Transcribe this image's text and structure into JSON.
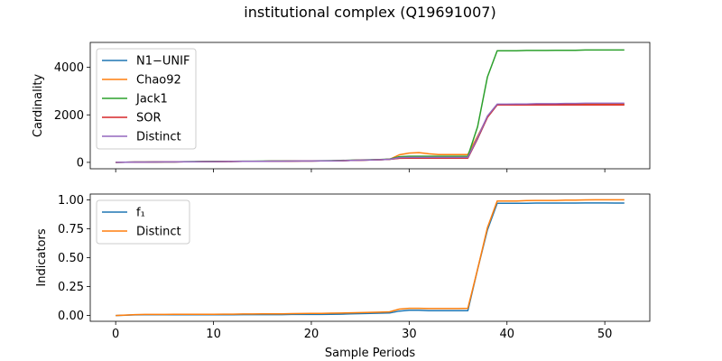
{
  "figure": {
    "title": "institutional complex (Q19691007)"
  },
  "chart_data": [
    {
      "type": "line",
      "ylabel": "Cardinality",
      "xlabel": "",
      "xlim": [
        -2.6,
        54.6
      ],
      "ylim": [
        -270,
        5050
      ],
      "xticks": [
        0,
        10,
        20,
        30,
        40,
        50
      ],
      "xticklabels": [
        "",
        "",
        "",
        "",
        "",
        ""
      ],
      "yticks": [
        0,
        2000,
        4000
      ],
      "yticklabels": [
        "0",
        "2000",
        "4000"
      ],
      "legend_position": "upper left",
      "x": [
        0,
        1,
        2,
        3,
        4,
        5,
        6,
        7,
        8,
        9,
        10,
        11,
        12,
        13,
        14,
        15,
        16,
        17,
        18,
        19,
        20,
        21,
        22,
        23,
        24,
        25,
        26,
        27,
        28,
        29,
        30,
        31,
        32,
        33,
        34,
        35,
        36,
        37,
        38,
        39,
        40,
        41,
        42,
        43,
        44,
        45,
        46,
        47,
        48,
        49,
        50,
        51,
        52
      ],
      "series": [
        {
          "name": "N1−UNIF",
          "color": "#1f77b4",
          "values": [
            0,
            5,
            10,
            12,
            15,
            18,
            20,
            25,
            28,
            30,
            32,
            35,
            38,
            40,
            42,
            45,
            48,
            50,
            52,
            55,
            58,
            60,
            65,
            70,
            80,
            90,
            100,
            110,
            130,
            180,
            190,
            190,
            190,
            190,
            190,
            190,
            190,
            1000,
            1900,
            2420,
            2420,
            2420,
            2420,
            2420,
            2420,
            2430,
            2430,
            2430,
            2440,
            2440,
            2440,
            2440,
            2440
          ]
        },
        {
          "name": "Chao92",
          "color": "#ff7f0e",
          "values": [
            0,
            5,
            10,
            12,
            15,
            18,
            20,
            25,
            28,
            30,
            32,
            35,
            38,
            40,
            42,
            45,
            48,
            50,
            52,
            55,
            58,
            60,
            65,
            70,
            80,
            90,
            100,
            110,
            130,
            320,
            390,
            410,
            360,
            330,
            330,
            330,
            330,
            1100,
            1900,
            2430,
            2430,
            2430,
            2440,
            2440,
            2440,
            2450,
            2450,
            2460,
            2460,
            2460,
            2460,
            2460,
            2460
          ]
        },
        {
          "name": "Jack1",
          "color": "#2ca02c",
          "values": [
            0,
            5,
            10,
            12,
            15,
            18,
            20,
            30,
            35,
            38,
            40,
            42,
            45,
            48,
            50,
            52,
            55,
            58,
            60,
            62,
            65,
            68,
            72,
            78,
            90,
            100,
            110,
            120,
            140,
            240,
            260,
            260,
            260,
            260,
            260,
            260,
            260,
            1500,
            3600,
            4700,
            4700,
            4700,
            4710,
            4710,
            4710,
            4720,
            4720,
            4720,
            4730,
            4730,
            4730,
            4730,
            4730
          ]
        },
        {
          "name": "SOR",
          "color": "#d62728",
          "values": [
            0,
            5,
            10,
            12,
            15,
            18,
            20,
            25,
            28,
            30,
            32,
            35,
            38,
            40,
            42,
            45,
            48,
            50,
            52,
            55,
            58,
            60,
            65,
            70,
            80,
            90,
            100,
            110,
            130,
            170,
            180,
            180,
            180,
            180,
            180,
            180,
            180,
            1000,
            1900,
            2420,
            2420,
            2420,
            2420,
            2420,
            2420,
            2420,
            2420,
            2420,
            2420,
            2420,
            2420,
            2420,
            2420
          ]
        },
        {
          "name": "Distinct",
          "color": "#9467bd",
          "values": [
            0,
            5,
            10,
            12,
            15,
            18,
            20,
            25,
            28,
            30,
            32,
            35,
            38,
            40,
            42,
            45,
            48,
            50,
            52,
            55,
            58,
            60,
            65,
            70,
            80,
            90,
            100,
            110,
            130,
            200,
            210,
            210,
            210,
            210,
            210,
            210,
            210,
            1050,
            1950,
            2450,
            2450,
            2460,
            2460,
            2470,
            2470,
            2470,
            2480,
            2480,
            2490,
            2490,
            2490,
            2490,
            2490
          ]
        }
      ]
    },
    {
      "type": "line",
      "ylabel": "Indicators",
      "xlabel": "Sample Periods",
      "xlim": [
        -2.6,
        54.6
      ],
      "ylim": [
        -0.05,
        1.05
      ],
      "xticks": [
        0,
        10,
        20,
        30,
        40,
        50
      ],
      "xticklabels": [
        "0",
        "10",
        "20",
        "30",
        "40",
        "50"
      ],
      "yticks": [
        0.0,
        0.25,
        0.5,
        0.75,
        1.0
      ],
      "yticklabels": [
        "0.00",
        "0.25",
        "0.50",
        "0.75",
        "1.00"
      ],
      "legend_position": "upper left",
      "x": [
        0,
        1,
        2,
        3,
        4,
        5,
        6,
        7,
        8,
        9,
        10,
        11,
        12,
        13,
        14,
        15,
        16,
        17,
        18,
        19,
        20,
        21,
        22,
        23,
        24,
        25,
        26,
        27,
        28,
        29,
        30,
        31,
        32,
        33,
        34,
        35,
        36,
        37,
        38,
        39,
        40,
        41,
        42,
        43,
        44,
        45,
        46,
        47,
        48,
        49,
        50,
        51,
        52
      ],
      "series": [
        {
          "name": "f₁",
          "color": "#1f77b4",
          "values": [
            0.0,
            0.003,
            0.005,
            0.006,
            0.006,
            0.006,
            0.006,
            0.006,
            0.007,
            0.007,
            0.007,
            0.007,
            0.007,
            0.008,
            0.008,
            0.008,
            0.008,
            0.008,
            0.009,
            0.009,
            0.009,
            0.009,
            0.01,
            0.012,
            0.014,
            0.016,
            0.018,
            0.02,
            0.022,
            0.038,
            0.045,
            0.045,
            0.042,
            0.042,
            0.042,
            0.042,
            0.042,
            0.4,
            0.74,
            0.97,
            0.97,
            0.97,
            0.97,
            0.972,
            0.972,
            0.972,
            0.972,
            0.972,
            0.973,
            0.973,
            0.973,
            0.972,
            0.972
          ]
        },
        {
          "name": "Distinct",
          "color": "#ff7f0e",
          "values": [
            0.0,
            0.004,
            0.008,
            0.009,
            0.009,
            0.009,
            0.01,
            0.01,
            0.011,
            0.011,
            0.011,
            0.012,
            0.012,
            0.013,
            0.013,
            0.014,
            0.014,
            0.015,
            0.016,
            0.017,
            0.018,
            0.019,
            0.02,
            0.021,
            0.023,
            0.025,
            0.027,
            0.029,
            0.032,
            0.055,
            0.062,
            0.062,
            0.06,
            0.06,
            0.06,
            0.06,
            0.062,
            0.4,
            0.76,
            0.99,
            0.99,
            0.99,
            0.993,
            0.995,
            0.995,
            0.995,
            0.997,
            0.998,
            0.999,
            1.0,
            1.0,
            1.0,
            1.0
          ]
        }
      ]
    }
  ]
}
